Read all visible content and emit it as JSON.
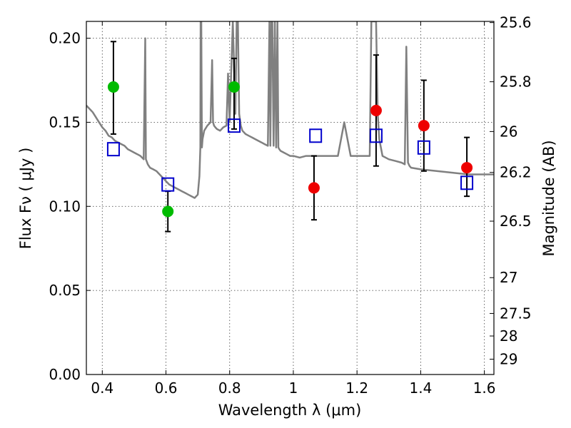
{
  "chart_data": {
    "type": "scatter",
    "title": "",
    "xlabel": "Wavelength  λ (μm)",
    "ylabel": "Flux  Fν  ( μJy )",
    "ylabel_right": "Magnitude (AB)",
    "xlim": [
      0.35,
      1.63
    ],
    "ylim": [
      0.0,
      0.21
    ],
    "grid": true,
    "x_ticks": [
      {
        "value": 0.4,
        "label": "0.4"
      },
      {
        "value": 0.6,
        "label": "0.6"
      },
      {
        "value": 0.8,
        "label": "0.8"
      },
      {
        "value": 1.0,
        "label": "1"
      },
      {
        "value": 1.2,
        "label": "1.2"
      },
      {
        "value": 1.4,
        "label": "1.4"
      },
      {
        "value": 1.6,
        "label": "1.6"
      }
    ],
    "y_ticks": [
      {
        "value": 0.0,
        "label": "0.00"
      },
      {
        "value": 0.05,
        "label": "0.05"
      },
      {
        "value": 0.1,
        "label": "0.10"
      },
      {
        "value": 0.15,
        "label": "0.15"
      },
      {
        "value": 0.2,
        "label": "0.20"
      }
    ],
    "right_ticks": [
      {
        "label": "25.6",
        "flux": 0.2093
      },
      {
        "label": "25.8",
        "flux": 0.1741
      },
      {
        "label": "26",
        "flux": 0.1445
      },
      {
        "label": "26.2",
        "flux": 0.1202
      },
      {
        "label": "26.5",
        "flux": 0.0912
      },
      {
        "label": "27",
        "flux": 0.0576
      },
      {
        "label": "27.5",
        "flux": 0.0363
      },
      {
        "label": "28",
        "flux": 0.0229
      },
      {
        "label": "29",
        "flux": 0.0091
      }
    ],
    "series": [
      {
        "color": "#808080",
        "line_width": 2.5,
        "marker": "line",
        "x": [
          0.35,
          0.36,
          0.37,
          0.38,
          0.39,
          0.4,
          0.41,
          0.42,
          0.43,
          0.44,
          0.45,
          0.46,
          0.47,
          0.48,
          0.49,
          0.5,
          0.51,
          0.52,
          0.53,
          0.535,
          0.537,
          0.539,
          0.541,
          0.543,
          0.55,
          0.56,
          0.57,
          0.58,
          0.59,
          0.6,
          0.61,
          0.62,
          0.63,
          0.64,
          0.65,
          0.66,
          0.67,
          0.68,
          0.69,
          0.7,
          0.705,
          0.708,
          0.709,
          0.711,
          0.713,
          0.715,
          0.72,
          0.73,
          0.74,
          0.745,
          0.748,
          0.751,
          0.755,
          0.76,
          0.77,
          0.78,
          0.79,
          0.795,
          0.8,
          0.81,
          0.818,
          0.822,
          0.826,
          0.83,
          0.835,
          0.84,
          0.85,
          0.86,
          0.87,
          0.88,
          0.89,
          0.9,
          0.91,
          0.92,
          0.925,
          0.928,
          0.931,
          0.934,
          0.938,
          0.942,
          0.946,
          0.95,
          0.953,
          0.956,
          0.96,
          0.97,
          0.98,
          0.99,
          1.0,
          1.02,
          1.04,
          1.06,
          1.07,
          1.08,
          1.09,
          1.1,
          1.12,
          1.14,
          1.16,
          1.18,
          1.19,
          1.2,
          1.22,
          1.24,
          1.245,
          1.25,
          1.26,
          1.265,
          1.27,
          1.28,
          1.3,
          1.32,
          1.34,
          1.35,
          1.355,
          1.36,
          1.365,
          1.37,
          1.4,
          1.45,
          1.5,
          1.55,
          1.6,
          1.63
        ],
        "y": [
          0.16,
          0.158,
          0.156,
          0.153,
          0.15,
          0.147,
          0.145,
          0.142,
          0.141,
          0.139,
          0.138,
          0.137,
          0.136,
          0.134,
          0.133,
          0.132,
          0.131,
          0.13,
          0.128,
          0.2,
          0.128,
          0.127,
          0.126,
          0.125,
          0.123,
          0.122,
          0.121,
          0.119,
          0.117,
          0.115,
          0.113,
          0.112,
          0.111,
          0.11,
          0.109,
          0.108,
          0.107,
          0.106,
          0.105,
          0.107,
          0.118,
          0.135,
          0.21,
          0.21,
          0.135,
          0.14,
          0.145,
          0.148,
          0.15,
          0.187,
          0.15,
          0.148,
          0.147,
          0.146,
          0.145,
          0.147,
          0.148,
          0.179,
          0.15,
          0.21,
          0.155,
          0.21,
          0.21,
          0.155,
          0.148,
          0.145,
          0.143,
          0.142,
          0.141,
          0.14,
          0.139,
          0.138,
          0.137,
          0.136,
          0.21,
          0.136,
          0.21,
          0.21,
          0.136,
          0.21,
          0.135,
          0.21,
          0.135,
          0.134,
          0.133,
          0.132,
          0.131,
          0.13,
          0.13,
          0.129,
          0.13,
          0.13,
          0.13,
          0.13,
          0.13,
          0.13,
          0.13,
          0.13,
          0.15,
          0.13,
          0.13,
          0.13,
          0.13,
          0.13,
          0.21,
          0.21,
          0.21,
          0.155,
          0.14,
          0.13,
          0.128,
          0.127,
          0.126,
          0.125,
          0.195,
          0.126,
          0.124,
          0.123,
          0.122,
          0.121,
          0.12,
          0.119,
          0.119,
          0.119
        ]
      },
      {
        "color": "#00bb00",
        "marker": "circle",
        "x": [
          0.435,
          0.606,
          0.814
        ],
        "y": [
          0.171,
          0.097,
          0.171
        ],
        "yerr_low": [
          0.143,
          0.085,
          0.146
        ],
        "yerr_high": [
          0.198,
          0.109,
          0.188
        ]
      },
      {
        "color": "#ee0000",
        "marker": "circle",
        "x": [
          1.065,
          1.26,
          1.41,
          1.545
        ],
        "y": [
          0.111,
          0.157,
          0.148,
          0.123
        ],
        "yerr_low": [
          0.092,
          0.124,
          0.121,
          0.106
        ],
        "yerr_high": [
          0.13,
          0.19,
          0.175,
          0.141
        ]
      },
      {
        "color": "#0000cc",
        "marker": "square",
        "x": [
          0.435,
          0.606,
          0.814,
          1.07,
          1.26,
          1.41,
          1.545
        ],
        "y": [
          0.134,
          0.113,
          0.148,
          0.142,
          0.142,
          0.135,
          0.114
        ]
      }
    ]
  }
}
